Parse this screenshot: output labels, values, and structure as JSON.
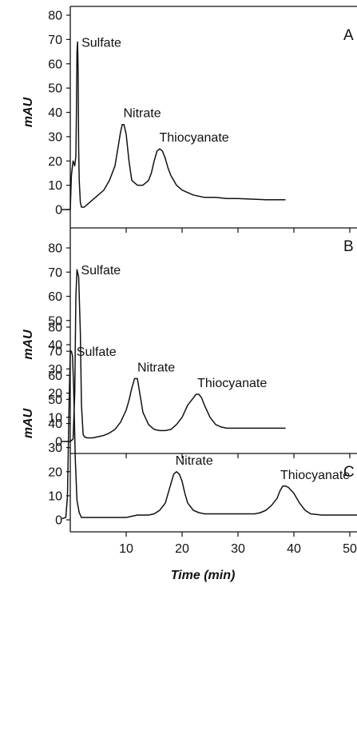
{
  "chart_data": [
    {
      "type": "line",
      "panel_label": "A",
      "ylabel": "mAU",
      "xlabel": "",
      "ylim": [
        0,
        80
      ],
      "xlim": [
        -1.5,
        55
      ],
      "yticks": [
        0,
        10,
        20,
        30,
        40,
        50,
        60,
        70,
        80
      ],
      "xticks": [],
      "peaks": [
        {
          "label": "Sulfate",
          "x": 1.3,
          "y": 69
        },
        {
          "label": "Nitrate",
          "x": 9.5,
          "y": 35
        },
        {
          "label": "Thiocyanate",
          "x": 16.5,
          "y": 25
        }
      ],
      "x": [
        -1.5,
        0,
        0.2,
        0.5,
        0.8,
        1.0,
        1.1,
        1.2,
        1.3,
        1.4,
        1.5,
        1.6,
        1.8,
        2.0,
        2.5,
        3,
        4,
        5,
        6,
        7,
        8,
        8.5,
        9,
        9.3,
        9.6,
        10,
        10.5,
        11,
        12,
        13,
        14,
        14.5,
        15,
        15.5,
        16,
        16.5,
        17,
        17.5,
        18,
        19,
        20,
        22,
        24,
        26,
        28,
        30,
        35,
        38.5
      ],
      "y": [
        0,
        0,
        14,
        20,
        18,
        22,
        40,
        65,
        69,
        58,
        25,
        12,
        3,
        1,
        1,
        2,
        4,
        6,
        8,
        12,
        18,
        25,
        32,
        35,
        35,
        31,
        20,
        12,
        10,
        10,
        12,
        15,
        20,
        24,
        25,
        24,
        21,
        17,
        14,
        10,
        8,
        6,
        5,
        5,
        4.5,
        4.5,
        4,
        4
      ]
    },
    {
      "type": "line",
      "panel_label": "B",
      "ylabel": "mAU",
      "xlabel": "",
      "ylim": [
        0,
        80
      ],
      "xlim": [
        -1.5,
        55
      ],
      "yticks": [
        0,
        10,
        20,
        30,
        40,
        50,
        60,
        70,
        80
      ],
      "xticks": [],
      "peaks": [
        {
          "label": "Sulfate",
          "x": 1.2,
          "y": 71
        },
        {
          "label": "Nitrate",
          "x": 12,
          "y": 26
        },
        {
          "label": "Thiocyanate",
          "x": 23.3,
          "y": 19.5
        }
      ],
      "x": [
        -1.5,
        0,
        0.5,
        0.8,
        1.0,
        1.2,
        1.5,
        1.8,
        2.0,
        2.3,
        2.5,
        3,
        4,
        5,
        6,
        7,
        8,
        9,
        10,
        10.5,
        11,
        11.5,
        12,
        12.5,
        13,
        14,
        15,
        16,
        17,
        18,
        19,
        20,
        21,
        22,
        22.5,
        23,
        23.5,
        24,
        25,
        26,
        27,
        28,
        30,
        35,
        38.5
      ],
      "y": [
        0,
        0,
        1,
        20,
        60,
        71,
        68,
        45,
        15,
        3,
        2,
        1.5,
        1.5,
        2,
        2.5,
        3.5,
        5,
        8,
        13,
        17,
        22,
        26,
        26,
        19,
        12,
        7,
        5,
        4.5,
        4.5,
        5,
        7,
        10,
        15,
        18,
        19.5,
        19.5,
        18,
        15,
        10,
        7,
        6,
        5.5,
        5.5,
        5.5,
        5.5
      ]
    },
    {
      "type": "line",
      "panel_label": "C",
      "ylabel": "mAU",
      "xlabel": "Time (min)",
      "ylim": [
        -1.5,
        80
      ],
      "xlim": [
        -1.5,
        55
      ],
      "yticks": [
        0,
        10,
        20,
        30,
        40,
        50,
        60,
        70,
        80
      ],
      "xticks": [
        10,
        20,
        30,
        40,
        50
      ],
      "peaks": [
        {
          "label": "Sulfate",
          "x": 0.4,
          "y": 70
        },
        {
          "label": "Nitrate",
          "x": 18.8,
          "y": 20
        },
        {
          "label": "Thiocyanate",
          "x": 38,
          "y": 14
        }
      ],
      "x": [
        -1.5,
        -0.8,
        -0.5,
        -0.2,
        0,
        0.2,
        0.4,
        0.6,
        0.9,
        1.2,
        1.6,
        2.0,
        3,
        5,
        8,
        10,
        12,
        14,
        15,
        16,
        17,
        18,
        18.5,
        19,
        19.5,
        20,
        20.5,
        21,
        22,
        23,
        24,
        26,
        30,
        33,
        34,
        35,
        36,
        37,
        37.5,
        38,
        38.5,
        39,
        40,
        41,
        42,
        43,
        45,
        48,
        55
      ],
      "y": [
        0.5,
        1,
        10,
        50,
        70,
        70,
        68,
        55,
        25,
        8,
        3,
        1,
        1,
        1,
        1,
        1,
        2,
        2,
        2.5,
        4,
        7,
        15,
        19,
        20,
        19,
        16,
        11,
        7,
        4,
        3,
        2.5,
        2.5,
        2.5,
        2.5,
        3,
        4,
        6,
        9,
        12,
        14,
        14,
        13.5,
        11,
        7,
        4,
        2.5,
        2,
        2,
        2
      ]
    }
  ]
}
